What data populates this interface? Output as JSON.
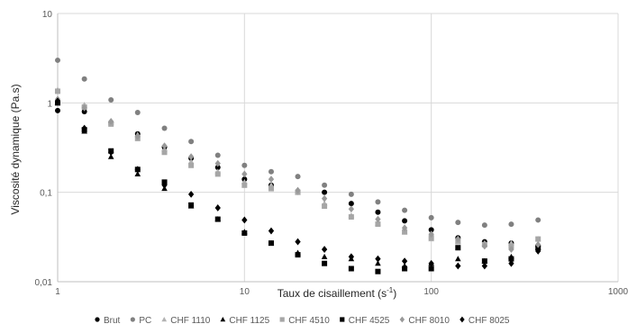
{
  "chart_data": {
    "type": "scatter",
    "title": "",
    "xlabel": "Taux de cisaillement (s",
    "xlabel_sup": "-1",
    "xlabel_end": ")",
    "ylabel": "Viscosité dynamique (Pa.s)",
    "xscale": "log",
    "yscale": "log",
    "xlim": [
      1,
      1000
    ],
    "ylim": [
      0.01,
      10
    ],
    "x_ticks": [
      {
        "value": 1,
        "label": "1"
      },
      {
        "value": 10,
        "label": "10"
      },
      {
        "value": 100,
        "label": "100"
      },
      {
        "value": 1000,
        "label": "1000"
      }
    ],
    "y_ticks": [
      {
        "value": 10,
        "label": "10"
      },
      {
        "value": 1,
        "label": "1"
      },
      {
        "value": 0.1,
        "label": "0,1"
      },
      {
        "value": 0.01,
        "label": "0,01"
      }
    ],
    "grid": true,
    "legend_position": "bottom",
    "x": [
      1,
      1.39,
      1.93,
      2.68,
      3.73,
      5.18,
      7.2,
      10,
      13.9,
      19.3,
      26.8,
      37.3,
      51.8,
      72,
      100,
      139,
      193,
      268,
      373
    ],
    "series": [
      {
        "name": "Brut",
        "marker": "circle",
        "color": "#000000",
        "values": [
          0.82,
          0.8,
          0.6,
          0.45,
          0.32,
          0.24,
          0.19,
          0.14,
          0.12,
          0.1,
          0.1,
          0.075,
          0.06,
          0.048,
          0.038,
          0.031,
          0.028,
          0.027,
          0.025
        ]
      },
      {
        "name": "PC",
        "marker": "circle",
        "color": "#808080",
        "values": [
          3.0,
          1.85,
          1.08,
          0.78,
          0.52,
          0.37,
          0.26,
          0.2,
          0.17,
          0.15,
          0.12,
          0.095,
          0.078,
          0.063,
          0.052,
          0.046,
          0.043,
          0.044,
          0.049
        ]
      },
      {
        "name": "CHF 1110",
        "marker": "triangle",
        "color": "#b3b3b3",
        "values": [
          1.4,
          0.95,
          0.6,
          0.44,
          0.3,
          0.22,
          0.17,
          0.13,
          0.12,
          0.1,
          0.075,
          0.055,
          0.045,
          0.036,
          0.03,
          0.028,
          0.027,
          0.027,
          0.03
        ]
      },
      {
        "name": "CHF 1125",
        "marker": "triangle",
        "color": "#000000",
        "values": [
          1.0,
          0.48,
          0.25,
          0.16,
          0.11,
          0.07,
          0.05,
          0.036,
          0.027,
          0.021,
          0.019,
          0.018,
          0.016,
          0.015,
          0.016,
          0.018,
          0.017,
          0.019,
          0.024
        ]
      },
      {
        "name": "CHF 4510",
        "marker": "square",
        "color": "#a6a6a6",
        "values": [
          1.35,
          0.9,
          0.58,
          0.4,
          0.28,
          0.2,
          0.16,
          0.12,
          0.11,
          0.1,
          0.07,
          0.053,
          0.044,
          0.036,
          0.031,
          0.028,
          0.026,
          0.025,
          0.03
        ]
      },
      {
        "name": "CHF 4525",
        "marker": "square",
        "color": "#000000",
        "values": [
          1.0,
          0.5,
          0.29,
          0.18,
          0.13,
          0.072,
          0.05,
          0.035,
          0.027,
          0.02,
          0.016,
          0.014,
          0.013,
          0.014,
          0.014,
          0.024,
          0.017,
          0.018,
          0.024
        ]
      },
      {
        "name": "CHF 8010",
        "marker": "diamond",
        "color": "#999999",
        "values": [
          1.1,
          0.88,
          0.62,
          0.42,
          0.33,
          0.25,
          0.21,
          0.16,
          0.14,
          0.105,
          0.085,
          0.065,
          0.05,
          0.04,
          0.034,
          0.03,
          0.025,
          0.023,
          0.026
        ]
      },
      {
        "name": "CHF 8025",
        "marker": "diamond",
        "color": "#000000",
        "values": [
          1.05,
          0.52,
          0.28,
          0.18,
          0.12,
          0.095,
          0.067,
          0.049,
          0.037,
          0.028,
          0.023,
          0.019,
          0.018,
          0.017,
          0.016,
          0.015,
          0.015,
          0.016,
          0.022
        ]
      }
    ]
  }
}
